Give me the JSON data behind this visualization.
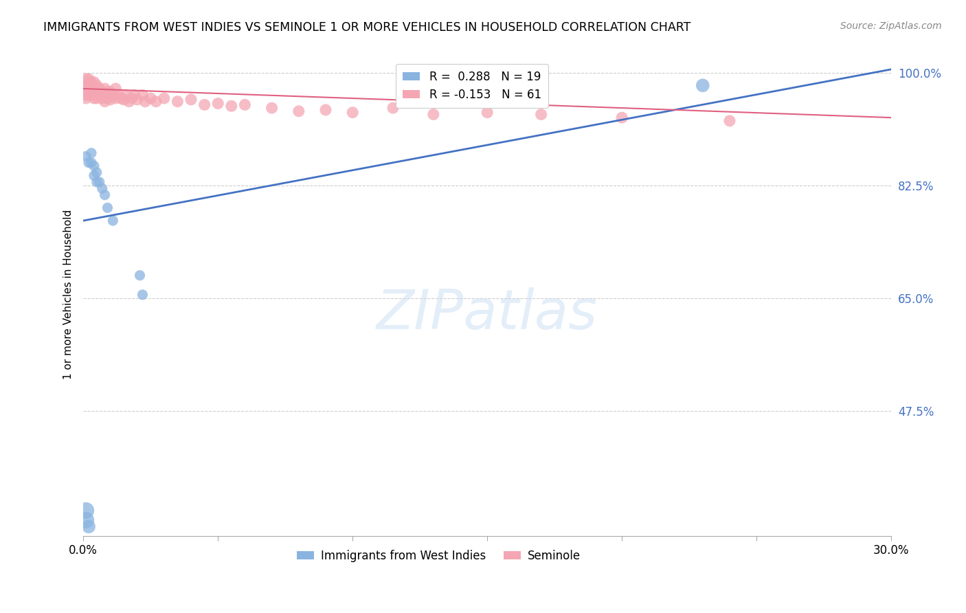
{
  "title": "IMMIGRANTS FROM WEST INDIES VS SEMINOLE 1 OR MORE VEHICLES IN HOUSEHOLD CORRELATION CHART",
  "source": "Source: ZipAtlas.com",
  "ylabel": "1 or more Vehicles in Household",
  "xmin": 0.0,
  "xmax": 0.3,
  "ymin": 0.28,
  "ymax": 1.03,
  "ytick_values": [
    0.475,
    0.65,
    0.825,
    1.0
  ],
  "blue_R": 0.288,
  "blue_N": 19,
  "pink_R": -0.153,
  "pink_N": 61,
  "blue_label": "Immigrants from West Indies",
  "pink_label": "Seminole",
  "blue_color": "#8ab4e0",
  "pink_color": "#f4a7b3",
  "blue_line_color": "#4472c4",
  "pink_line_color": "#e06080",
  "blue_line_x0": 0.0,
  "blue_line_y0": 0.77,
  "blue_line_x1": 0.3,
  "blue_line_y1": 1.005,
  "pink_line_x0": 0.0,
  "pink_line_y0": 0.975,
  "pink_line_x1": 0.3,
  "pink_line_y1": 0.93,
  "blue_x": [
    0.001,
    0.002,
    0.003,
    0.003,
    0.004,
    0.004,
    0.005,
    0.005,
    0.006,
    0.007,
    0.008,
    0.009,
    0.011,
    0.021,
    0.022,
    0.001,
    0.001,
    0.002,
    0.23
  ],
  "blue_y": [
    0.87,
    0.86,
    0.875,
    0.86,
    0.855,
    0.84,
    0.845,
    0.83,
    0.83,
    0.82,
    0.81,
    0.79,
    0.77,
    0.685,
    0.655,
    0.32,
    0.305,
    0.295,
    0.98
  ],
  "blue_sizes": [
    120,
    120,
    120,
    120,
    120,
    120,
    120,
    120,
    120,
    120,
    120,
    120,
    120,
    120,
    120,
    300,
    300,
    200,
    200
  ],
  "pink_x": [
    0.001,
    0.001,
    0.001,
    0.001,
    0.001,
    0.002,
    0.002,
    0.002,
    0.002,
    0.003,
    0.003,
    0.003,
    0.004,
    0.004,
    0.004,
    0.005,
    0.005,
    0.005,
    0.006,
    0.006,
    0.007,
    0.007,
    0.008,
    0.008,
    0.008,
    0.009,
    0.009,
    0.01,
    0.01,
    0.011,
    0.012,
    0.012,
    0.013,
    0.014,
    0.015,
    0.016,
    0.017,
    0.018,
    0.019,
    0.02,
    0.022,
    0.023,
    0.025,
    0.027,
    0.03,
    0.035,
    0.04,
    0.045,
    0.05,
    0.055,
    0.06,
    0.07,
    0.08,
    0.09,
    0.1,
    0.115,
    0.13,
    0.15,
    0.17,
    0.2,
    0.24
  ],
  "pink_y": [
    0.99,
    0.98,
    0.975,
    0.965,
    0.96,
    0.99,
    0.985,
    0.975,
    0.965,
    0.985,
    0.975,
    0.965,
    0.985,
    0.975,
    0.96,
    0.98,
    0.97,
    0.96,
    0.975,
    0.965,
    0.97,
    0.96,
    0.975,
    0.965,
    0.955,
    0.97,
    0.96,
    0.97,
    0.958,
    0.965,
    0.975,
    0.96,
    0.965,
    0.96,
    0.958,
    0.965,
    0.955,
    0.96,
    0.965,
    0.958,
    0.965,
    0.955,
    0.96,
    0.955,
    0.96,
    0.955,
    0.958,
    0.95,
    0.952,
    0.948,
    0.95,
    0.945,
    0.94,
    0.942,
    0.938,
    0.945,
    0.935,
    0.938,
    0.935,
    0.93,
    0.925
  ],
  "pink_sizes": [
    150,
    150,
    150,
    150,
    150,
    150,
    150,
    150,
    150,
    150,
    150,
    150,
    150,
    150,
    150,
    150,
    150,
    150,
    150,
    150,
    150,
    150,
    150,
    150,
    150,
    150,
    150,
    150,
    150,
    150,
    150,
    150,
    150,
    150,
    150,
    150,
    150,
    150,
    150,
    150,
    150,
    150,
    150,
    150,
    150,
    150,
    150,
    150,
    150,
    150,
    150,
    150,
    150,
    150,
    150,
    150,
    150,
    150,
    150,
    150,
    150
  ]
}
